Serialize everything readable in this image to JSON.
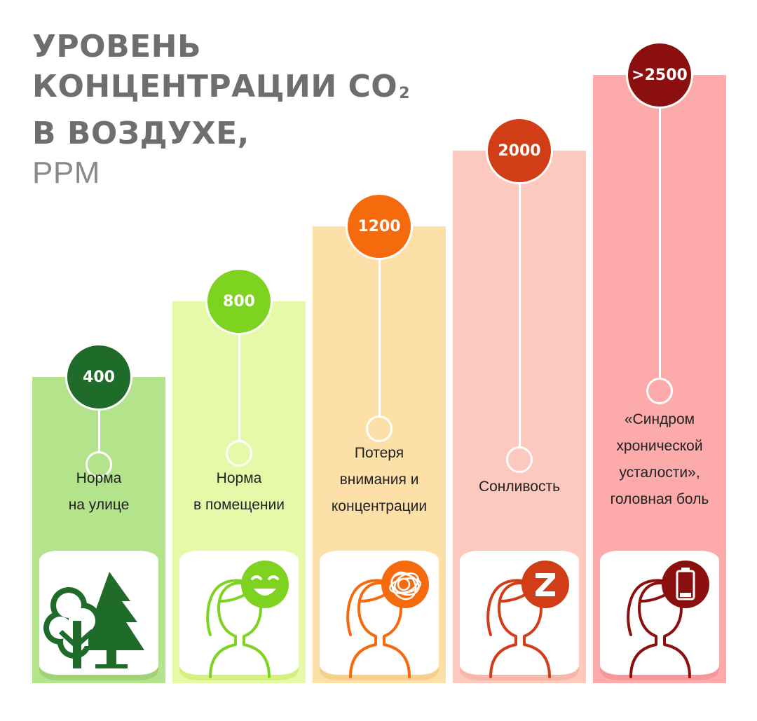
{
  "title": {
    "line1": "УРОВЕНЬ",
    "line2": "КОНЦЕНТРАЦИИ CO",
    "line2_sub": "2",
    "line3": "В ВОЗДУХЕ,",
    "unit": "PPM"
  },
  "chart_data": {
    "type": "bar",
    "categories": [
      "400",
      "800",
      "1200",
      "2000",
      ">2500"
    ],
    "values": [
      400,
      800,
      1200,
      2000,
      2500
    ],
    "labels": [
      [
        "Норма",
        "на улице"
      ],
      [
        "Норма",
        "в помещении"
      ],
      [
        "Потеря",
        "внимания и",
        "концентрации"
      ],
      [
        "Сонливость"
      ],
      [
        "«Синдром",
        "хронической",
        "усталости»,",
        "головная боль"
      ]
    ],
    "colors": {
      "bg": [
        "#b3e38a",
        "#e5f9a8",
        "#fce0a8",
        "#fdc8be",
        "#fdaaaa"
      ],
      "circle": [
        "#1e6b2a",
        "#7ed321",
        "#f46a0c",
        "#d13d17",
        "#8b0f0f"
      ],
      "card_bg": [
        "#9fd376",
        "#d4f07f",
        "#f6cf8a",
        "#f7b6a8",
        "#f79898"
      ]
    },
    "icons": [
      "trees-icon",
      "happy-person-icon",
      "confused-person-icon",
      "sleepy-person-icon",
      "low-battery-person-icon"
    ]
  }
}
